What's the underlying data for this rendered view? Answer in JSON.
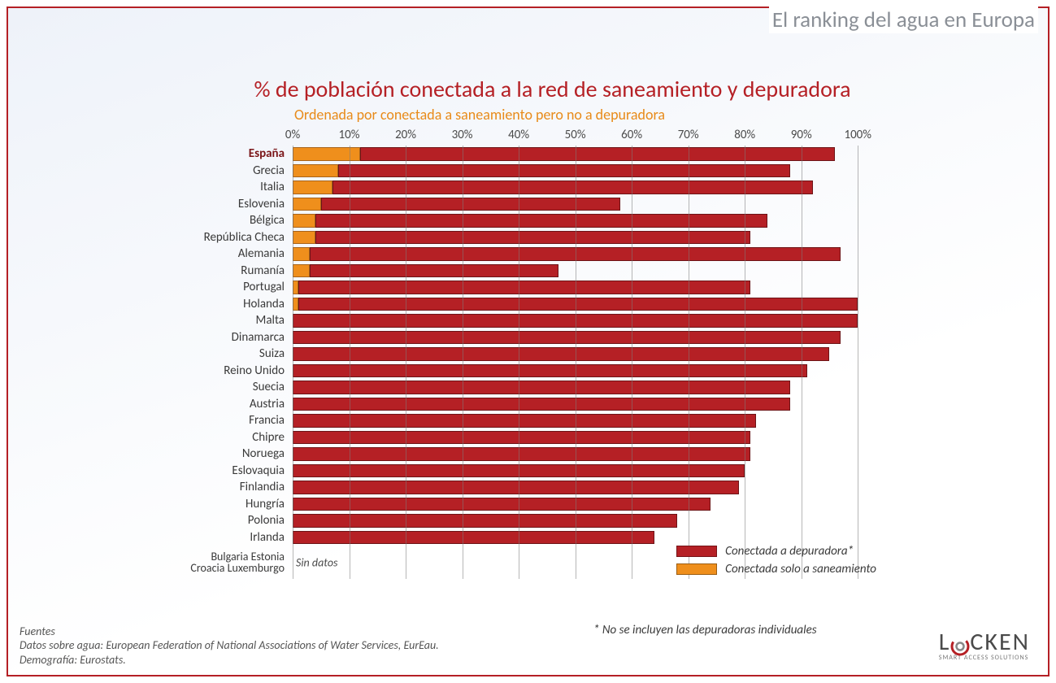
{
  "header_title": "El ranking del agua en Europa",
  "chart": {
    "type": "stacked-horizontal-bar",
    "title": "% de población conectada a la red de saneamiento y depuradora",
    "subtitle": "Ordenada por conectada a saneamiento pero no a depuradora",
    "x_axis": {
      "min": 0,
      "max": 105,
      "ticks": [
        0,
        10,
        20,
        30,
        40,
        50,
        60,
        70,
        80,
        90,
        100
      ],
      "tick_labels": [
        "0%",
        "10%",
        "20%",
        "30%",
        "40%",
        "50%",
        "60%",
        "70%",
        "80%",
        "90%",
        "100%"
      ],
      "grid_color": "#7b7b7b"
    },
    "series_colors": {
      "only_sanitation": "#ef8f1c",
      "treatment": "#b52025"
    },
    "bar_border_colors": {
      "only_sanitation": "#a8641a",
      "treatment": "#6d1417"
    },
    "highlight_country": "España",
    "rows": [
      {
        "label": "España",
        "only_sanitation": 12,
        "treatment": 84,
        "bold": true
      },
      {
        "label": "Grecia",
        "only_sanitation": 8,
        "treatment": 80
      },
      {
        "label": "Italia",
        "only_sanitation": 7,
        "treatment": 85
      },
      {
        "label": "Eslovenia",
        "only_sanitation": 5,
        "treatment": 53
      },
      {
        "label": "Bélgica",
        "only_sanitation": 4,
        "treatment": 80
      },
      {
        "label": "República  Checa",
        "only_sanitation": 4,
        "treatment": 77
      },
      {
        "label": "Alemania",
        "only_sanitation": 3,
        "treatment": 94
      },
      {
        "label": "Rumanía",
        "only_sanitation": 3,
        "treatment": 44
      },
      {
        "label": "Portugal",
        "only_sanitation": 1,
        "treatment": 80
      },
      {
        "label": "Holanda",
        "only_sanitation": 1,
        "treatment": 99
      },
      {
        "label": "Malta",
        "only_sanitation": 0,
        "treatment": 100
      },
      {
        "label": "Dinamarca",
        "only_sanitation": 0,
        "treatment": 97
      },
      {
        "label": "Suiza",
        "only_sanitation": 0,
        "treatment": 95
      },
      {
        "label": "Reino  Unido",
        "only_sanitation": 0,
        "treatment": 91
      },
      {
        "label": "Suecia",
        "only_sanitation": 0,
        "treatment": 88
      },
      {
        "label": "Austria",
        "only_sanitation": 0,
        "treatment": 88
      },
      {
        "label": "Francia",
        "only_sanitation": 0,
        "treatment": 82
      },
      {
        "label": "Chipre",
        "only_sanitation": 0,
        "treatment": 81
      },
      {
        "label": "Noruega",
        "only_sanitation": 0,
        "treatment": 81
      },
      {
        "label": "Eslovaquia",
        "only_sanitation": 0,
        "treatment": 80
      },
      {
        "label": "Finlandia",
        "only_sanitation": 0,
        "treatment": 79
      },
      {
        "label": "Hungría",
        "only_sanitation": 0,
        "treatment": 74
      },
      {
        "label": "Polonia",
        "only_sanitation": 0,
        "treatment": 68
      },
      {
        "label": "Irlanda",
        "only_sanitation": 0,
        "treatment": 64
      }
    ],
    "no_data": {
      "labels": [
        "Bulgaria  Estonia",
        "Croacia Luxemburgo"
      ],
      "text": "Sin datos"
    },
    "legend": [
      {
        "color": "#b52025",
        "label": "Conectada a depuradora*"
      },
      {
        "color": "#ef8f1c",
        "label": "Conectada solo a saneamiento"
      }
    ],
    "footnote": "* No se incluyen las depuradoras individuales",
    "background_gradient": [
      "#eef2f9",
      "#ffffff"
    ],
    "border_color": "#b52025",
    "label_fontsize": 15,
    "title_fontsize": 28,
    "subtitle_fontsize": 18,
    "bar_row_height": 20.5
  },
  "sources": {
    "heading": "Fuentes",
    "line1": "Datos sobre agua: European Federation of National Associations of Water Services, EurEau.",
    "line2": "Demografía: Eurostats."
  },
  "logo": {
    "text_before_o": "L",
    "text_after_o": "CKEN",
    "subtitle": "SMART ACCESS SOLUTIONS",
    "ring_color": "#b52025",
    "text_color": "#4a4a4a"
  }
}
